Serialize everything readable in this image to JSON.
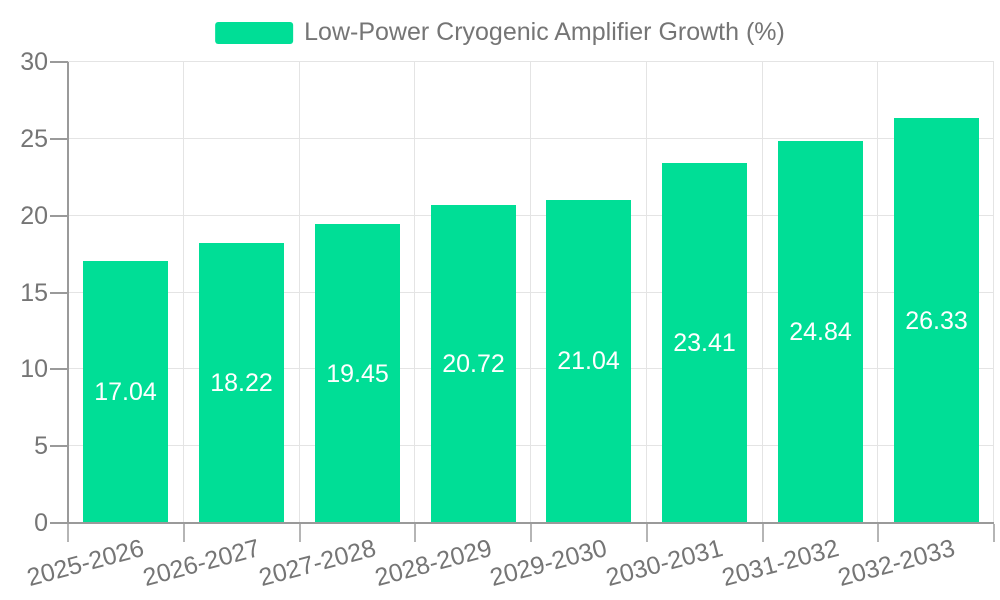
{
  "legend": {
    "items": [
      {
        "label": "Low-Power Cryogenic Amplifier Growth (%)",
        "color": "#00DE96"
      }
    ]
  },
  "colors": {
    "bar": "#00DE96",
    "axis_line": "#9a9a9a",
    "grid_line": "#e4e4e4",
    "tick_text": "#757575",
    "value_label_text": "#ffffff",
    "background": "#ffffff"
  },
  "chart_data": {
    "type": "bar",
    "title": "Low-Power Cryogenic Amplifier Growth (%)",
    "categories": [
      "2025-2026",
      "2026-2027",
      "2027-2028",
      "2028-2029",
      "2029-2030",
      "2030-2031",
      "2031-2032",
      "2032-2033"
    ],
    "values": [
      17.04,
      18.22,
      19.45,
      20.72,
      21.04,
      23.41,
      24.84,
      26.33
    ],
    "value_labels": [
      "17.04",
      "18.22",
      "19.45",
      "20.72",
      "21.04",
      "23.41",
      "24.84",
      "26.33"
    ],
    "xlabel": "",
    "ylabel": "",
    "ylim": [
      0,
      30
    ],
    "yticks": [
      0,
      5,
      10,
      15,
      20,
      25,
      30
    ],
    "grid": true,
    "legend_position": "top",
    "x_label_rotation_deg": -15,
    "value_label_position": "inside-center"
  }
}
